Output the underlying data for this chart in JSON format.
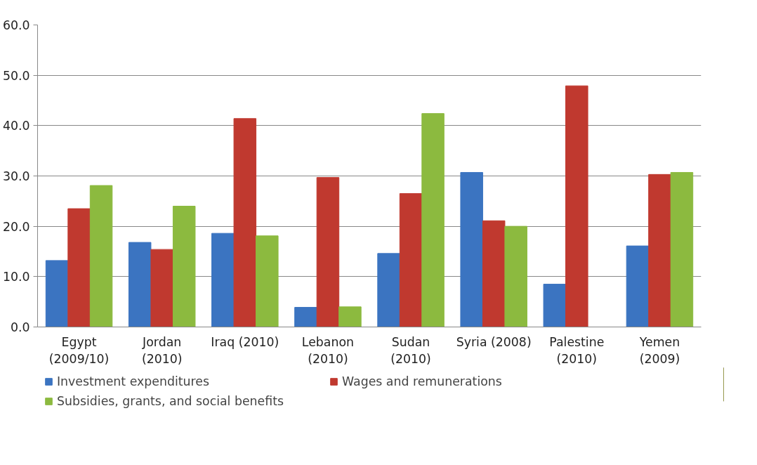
{
  "chart_data": {
    "type": "bar",
    "categories": [
      "Egypt\n(2009/10)",
      "Jordan\n(2010)",
      "Iraq (2010)",
      "Lebanon\n(2010)",
      "Sudan\n(2010)",
      "Syria (2008)",
      "Palestine\n(2010)",
      "Yemen\n(2009)"
    ],
    "series": [
      {
        "name": "Investment expenditures",
        "color": "#3b74c1",
        "values": [
          13.2,
          16.8,
          18.6,
          3.9,
          14.6,
          30.7,
          8.5,
          16.1
        ]
      },
      {
        "name": "Wages and remunerations",
        "color": "#c0392f",
        "values": [
          23.5,
          15.4,
          41.4,
          29.7,
          26.5,
          21.1,
          47.9,
          30.3
        ]
      },
      {
        "name": "Subsidies, grants, and social benefits",
        "color": "#8cba3f",
        "values": [
          28.1,
          24.0,
          18.1,
          4.0,
          42.4,
          20.0,
          null,
          30.7
        ]
      }
    ],
    "ylim": [
      0,
      60
    ],
    "yticks": [
      {
        "value": 0,
        "label": "0.0"
      },
      {
        "value": 10,
        "label": "10.0"
      },
      {
        "value": 20,
        "label": "20.0"
      },
      {
        "value": 30,
        "label": "30.0"
      },
      {
        "value": 40,
        "label": "40.0"
      },
      {
        "value": 50,
        "label": "50.0"
      },
      {
        "value": 60,
        "label": "60.0"
      }
    ],
    "grid": "y",
    "legend": "bottom"
  }
}
